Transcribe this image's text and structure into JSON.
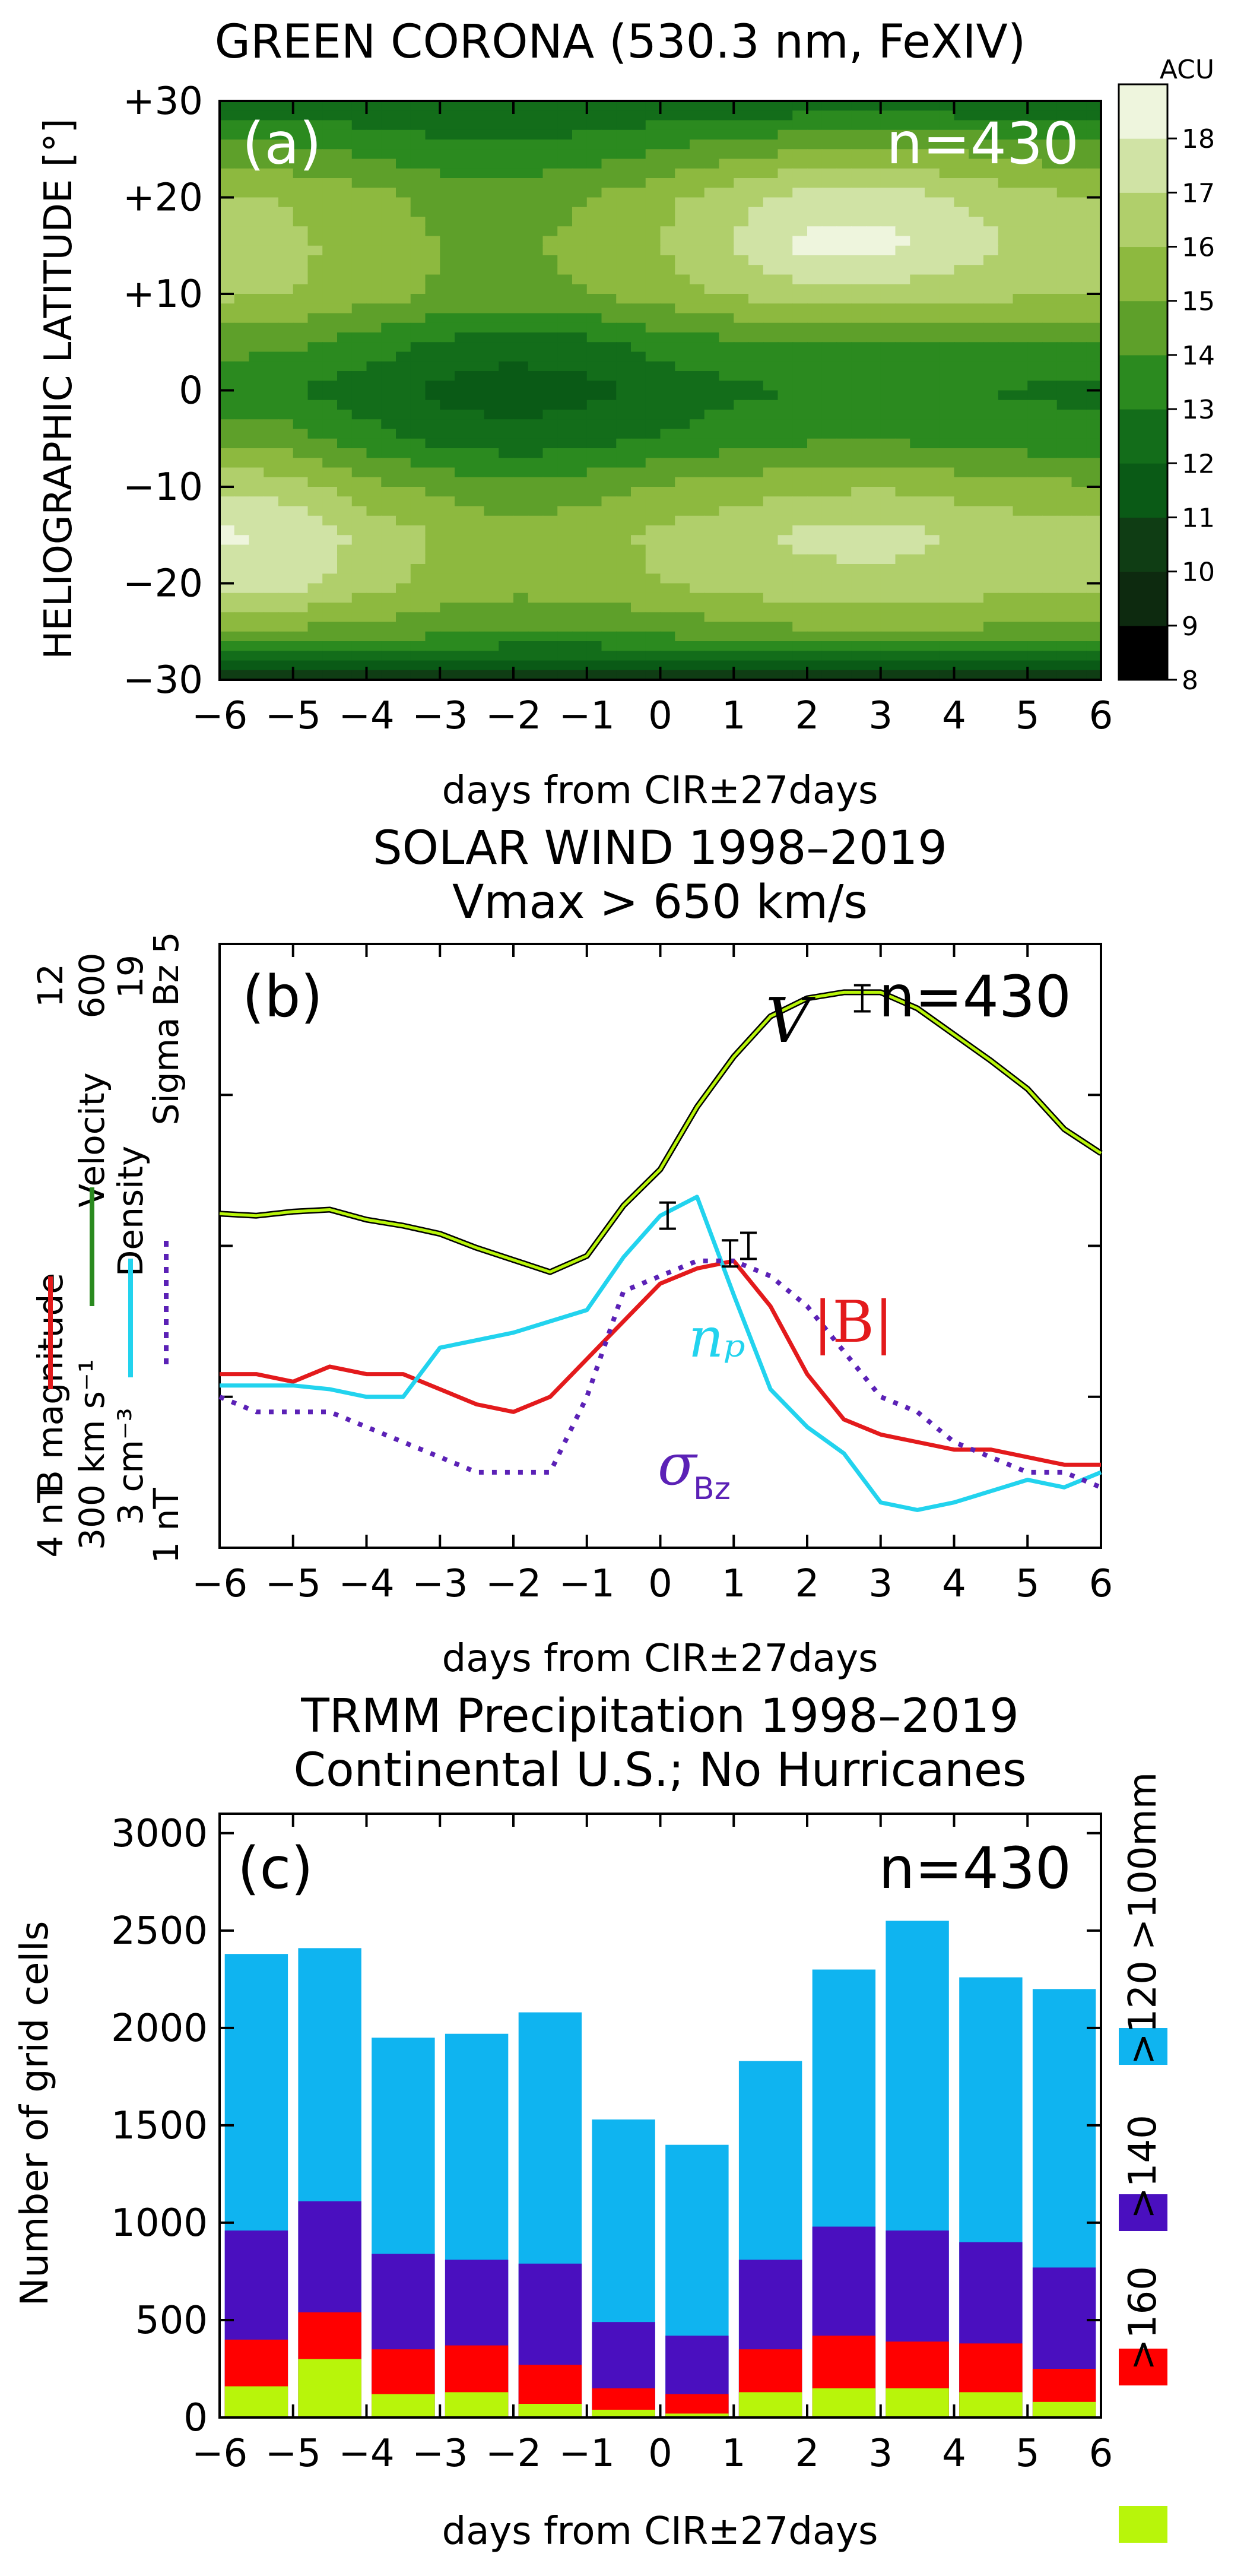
{
  "figure": {
    "panel_a": {
      "title": "GREEN CORONA (530.3 nm, FeXIV)",
      "label": "(a)",
      "n_label": "n=430",
      "ylabel": "HELIOGRAPHIC LATITUDE [°]",
      "xlabel": "days from CIR±27days",
      "xticks": [
        "−6",
        "−5",
        "−4",
        "−3",
        "−2",
        "−1",
        "0",
        "1",
        "2",
        "3",
        "4",
        "5",
        "6"
      ],
      "yticks": [
        "+30",
        "+20",
        "+10",
        "0",
        "−10",
        "−20",
        "−30"
      ],
      "colorbar_title": "ACU",
      "colorbar_ticks": [
        "8",
        "9",
        "10",
        "11",
        "12",
        "13",
        "14",
        "15",
        "16",
        "17",
        "18"
      ],
      "colormap": [
        "#000000",
        "#0d2a0f",
        "#0f3d14",
        "#0a5a16",
        "#136d1a",
        "#2b8a1f",
        "#5ea02a",
        "#8db93f",
        "#b0cf6b",
        "#d0e3a5",
        "#eef5dd"
      ]
    },
    "panel_b": {
      "title_line1": "SOLAR WIND 1998–2019",
      "title_line2": "Vmax > 650 km/s",
      "label": "(b)",
      "n_label": "n=430",
      "xlabel": "days from CIR±27days",
      "xticks": [
        "−6",
        "−5",
        "−4",
        "−3",
        "−2",
        "−1",
        "0",
        "1",
        "2",
        "3",
        "4",
        "5",
        "6"
      ],
      "axis_B": {
        "title": "B magnitude",
        "low": "4 nT",
        "high": "12",
        "color": "#e31a1c"
      },
      "axis_V": {
        "title": "Velocity",
        "low": "300 km s⁻¹",
        "high": "600",
        "color": "#2a8a1f"
      },
      "axis_n": {
        "title": "Density",
        "low": "3 cm⁻³",
        "high": "19",
        "color": "#22d3ee"
      },
      "axis_s": {
        "title": "Sigma Bz",
        "low": "1 nT",
        "high": "5",
        "color": "#5b21b6"
      },
      "label_V": "V",
      "label_B": "|B|",
      "label_n": "nₚ",
      "label_s_sigma": "σ",
      "label_s_sub": "Bz"
    },
    "panel_c": {
      "title_line1": "TRMM Precipitation 1998–2019",
      "title_line2": "Continental U.S.; No Hurricanes",
      "label": "(c)",
      "n_label": "n=430",
      "ylabel": "Number of grid cells",
      "xlabel": "days from CIR±27days",
      "xticks": [
        "−6",
        "−5",
        "−4",
        "−3",
        "−2",
        "−1",
        "0",
        "1",
        "2",
        "3",
        "4",
        "5",
        "6"
      ],
      "yticks": [
        "0",
        "500",
        "1000",
        "1500",
        "2000",
        "2500",
        "3000"
      ],
      "legend": [
        {
          "label": ">100mm",
          "color": "#0fb4f0"
        },
        {
          "label": ">120",
          "color": "#4a0fbf"
        },
        {
          "label": ">140",
          "color": "#ff0000"
        },
        {
          "label": ">160",
          "color": "#b8f50a"
        }
      ]
    }
  },
  "chart_data": [
    {
      "type": "heatmap",
      "title": "GREEN CORONA (530.3 nm, FeXIV)",
      "xlabel": "days from CIR±27days",
      "ylabel": "HELIOGRAPHIC LATITUDE [°]",
      "xlim": [
        -6,
        6
      ],
      "ylim": [
        -30,
        30
      ],
      "x": [
        -6,
        -5,
        -4,
        -3,
        -2,
        -1,
        0,
        1,
        2,
        3,
        4,
        5,
        6
      ],
      "y": [
        -30,
        -25,
        -20,
        -15,
        -10,
        -5,
        0,
        5,
        10,
        15,
        20,
        25,
        30
      ],
      "z": [
        [
          10.5,
          10.5,
          10.5,
          10.5,
          10.5,
          10.5,
          10.5,
          10.5,
          10.5,
          10.5,
          10.5,
          10.5,
          10.5
        ],
        [
          14.8,
          14.8,
          14.6,
          14.3,
          14.0,
          14.0,
          14.3,
          14.6,
          14.9,
          15.0,
          14.9,
          14.7,
          14.5
        ],
        [
          17.6,
          17.4,
          16.4,
          15.7,
          15.4,
          15.6,
          16.0,
          16.4,
          16.7,
          16.8,
          16.6,
          16.4,
          16.2
        ],
        [
          18.2,
          17.9,
          16.7,
          15.9,
          15.4,
          15.6,
          16.2,
          16.7,
          17.2,
          17.3,
          17.0,
          16.6,
          16.4
        ],
        [
          16.8,
          16.5,
          15.4,
          14.7,
          14.3,
          14.6,
          15.1,
          15.5,
          15.8,
          15.9,
          15.6,
          15.3,
          15.1
        ],
        [
          14.7,
          14.4,
          13.4,
          12.7,
          12.3,
          12.6,
          13.1,
          13.5,
          13.8,
          13.9,
          13.7,
          13.4,
          13.2
        ],
        [
          13.3,
          13.0,
          12.4,
          11.7,
          11.4,
          11.7,
          12.3,
          12.8,
          13.0,
          13.0,
          13.0,
          12.9,
          12.8
        ],
        [
          14.4,
          14.2,
          13.6,
          12.9,
          12.5,
          12.8,
          13.4,
          13.9,
          14.1,
          14.1,
          14.0,
          13.9,
          13.9
        ],
        [
          16.2,
          16.0,
          15.5,
          14.9,
          14.7,
          15.0,
          15.6,
          16.1,
          16.6,
          16.6,
          16.4,
          16.2,
          16.2
        ],
        [
          16.9,
          16.2,
          15.6,
          15.0,
          14.9,
          15.2,
          16.0,
          17.1,
          18.3,
          18.4,
          17.6,
          16.8,
          16.3
        ],
        [
          16.2,
          15.9,
          15.4,
          14.7,
          14.6,
          15.0,
          15.7,
          16.6,
          17.5,
          17.6,
          17.0,
          16.3,
          16.0
        ],
        [
          14.4,
          14.2,
          13.7,
          13.2,
          13.1,
          13.4,
          13.9,
          14.5,
          15.0,
          15.2,
          14.9,
          14.5,
          14.3
        ],
        [
          12.2,
          12.2,
          12.2,
          12.2,
          12.2,
          12.2,
          12.2,
          12.2,
          12.2,
          12.2,
          12.2,
          12.2,
          12.2
        ]
      ],
      "levels": [
        8,
        9,
        10,
        11,
        12,
        13,
        14,
        15,
        16,
        17,
        18,
        19
      ],
      "colorbar_label": "ACU"
    },
    {
      "type": "line",
      "title": "SOLAR WIND 1998–2019 Vmax > 650 km/s",
      "xlabel": "days from CIR±27days",
      "xlim": [
        -6,
        6
      ],
      "x": [
        -6,
        -5.5,
        -5,
        -4.5,
        -4,
        -3.5,
        -3,
        -2.5,
        -2,
        -1.5,
        -1,
        -0.5,
        0,
        0.5,
        1,
        1.5,
        2,
        2.5,
        3,
        3.5,
        4,
        4.5,
        5,
        5.5,
        6
      ],
      "series": [
        {
          "name": "V (Velocity)",
          "unit": "km/s",
          "ylim": [
            300,
            600
          ],
          "values": [
            466,
            465,
            467,
            468,
            463,
            460,
            456,
            449,
            443,
            437,
            445,
            470,
            488,
            519,
            544,
            564,
            573,
            576,
            576,
            568,
            555,
            542,
            528,
            508,
            496
          ]
        },
        {
          "name": "|B| (B magnitude)",
          "unit": "nT",
          "ylim": [
            4,
            12
          ],
          "values": [
            6.3,
            6.3,
            6.2,
            6.4,
            6.3,
            6.3,
            6.1,
            5.9,
            5.8,
            6.0,
            6.5,
            7.0,
            7.5,
            7.7,
            7.8,
            7.2,
            6.3,
            5.7,
            5.5,
            5.4,
            5.3,
            5.3,
            5.2,
            5.1,
            5.1
          ]
        },
        {
          "name": "nP (Density)",
          "unit": "cm^-3",
          "ylim": [
            3,
            19
          ],
          "values": [
            7.3,
            7.3,
            7.3,
            7.2,
            7.0,
            7.0,
            8.3,
            8.5,
            8.7,
            9.0,
            9.3,
            10.7,
            11.8,
            12.3,
            9.7,
            7.2,
            6.2,
            5.5,
            4.2,
            4.0,
            4.2,
            4.5,
            4.8,
            4.6,
            5.0
          ]
        },
        {
          "name": "σBz (Sigma Bz)",
          "unit": "nT",
          "ylim": [
            1,
            5
          ],
          "values": [
            2.0,
            1.9,
            1.9,
            1.9,
            1.8,
            1.7,
            1.6,
            1.5,
            1.5,
            1.5,
            2.0,
            2.7,
            2.8,
            2.9,
            2.9,
            2.8,
            2.6,
            2.3,
            2.0,
            1.9,
            1.7,
            1.6,
            1.5,
            1.5,
            1.4
          ]
        }
      ],
      "error_bars": [
        {
          "series": "V (Velocity)",
          "x": 2.75,
          "value": 573
        },
        {
          "series": "|B| (B magnitude)",
          "x": 0.95,
          "value": 7.9
        },
        {
          "series": "nP (Density)",
          "x": 0.1,
          "value": 11.8
        },
        {
          "series": "σBz (Sigma Bz)",
          "x": 1.2,
          "value": 3.0
        }
      ]
    },
    {
      "type": "bar",
      "stacked": false,
      "title": "TRMM Precipitation 1998–2019 Continental U.S.; No Hurricanes",
      "xlabel": "days from CIR±27days",
      "ylabel": "Number of grid cells",
      "ylim": [
        0,
        3100
      ],
      "xlim": [
        -6,
        6
      ],
      "categories": [
        -5.5,
        -4.5,
        -3.5,
        -2.5,
        -1.5,
        -0.5,
        0.5,
        1.5,
        2.5,
        3.5,
        4.5,
        5.5
      ],
      "series": [
        {
          "name": ">100mm",
          "values": [
            2380,
            2410,
            1950,
            1970,
            2080,
            1530,
            1400,
            1830,
            2300,
            2550,
            2260,
            2200
          ]
        },
        {
          "name": ">120",
          "values": [
            960,
            1110,
            840,
            810,
            790,
            490,
            420,
            810,
            980,
            960,
            900,
            770
          ]
        },
        {
          "name": ">140",
          "values": [
            400,
            540,
            350,
            370,
            270,
            150,
            120,
            350,
            420,
            390,
            380,
            250
          ]
        },
        {
          "name": ">160",
          "values": [
            160,
            300,
            120,
            130,
            70,
            40,
            20,
            130,
            150,
            150,
            130,
            80
          ]
        }
      ],
      "legend": [
        ">100mm",
        ">120",
        ">140",
        ">160"
      ]
    }
  ]
}
